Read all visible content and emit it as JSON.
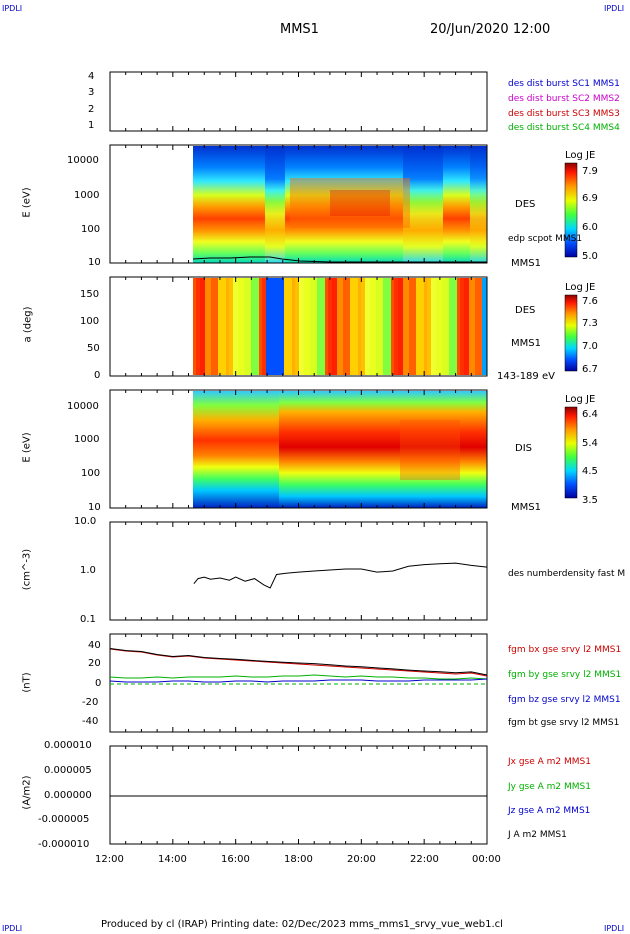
{
  "corner_label": "IPDLI",
  "header": {
    "title": "MMS1",
    "datetime": "20/Jun/2020 12:00"
  },
  "footer": "Produced by cl (IRAP)   Printing date: 02/Dec/2023   mms_mms1_srvy_vue_web1.cl",
  "colors": {
    "axis": "#000000",
    "legend_blue": "#0000cc",
    "legend_magenta": "#cc00cc",
    "legend_red": "#cc0000",
    "legend_green": "#00b000"
  },
  "chart_data": [
    {
      "type": "line",
      "panel": "spacecraft-flags",
      "y_ticks": [
        "1",
        "2",
        "3",
        "4"
      ],
      "ylim": [
        0.7,
        4.3
      ],
      "legend": [
        {
          "text": "des dist burst SC1 MMS1",
          "color": "#0000cc"
        },
        {
          "text": "des dist burst SC2 MMS2",
          "color": "#cc00cc"
        },
        {
          "text": "des dist burst SC3 MMS3",
          "color": "#cc0000"
        },
        {
          "text": "des dist burst SC4 MMS4",
          "color": "#00b000"
        }
      ]
    },
    {
      "type": "heatmap",
      "panel": "des-energy",
      "ylabel": "E (eV)",
      "y_ticks": [
        "10",
        "100",
        "1000",
        "10000"
      ],
      "ylim": [
        10,
        30000
      ],
      "y_scale": "log",
      "side_label": "DES",
      "side_bottom": "MMS1",
      "overlay_label": "edp scpot MMS1",
      "colorbar": {
        "title": "Log JE",
        "ticks": [
          "5.0",
          "6.0",
          "6.9",
          "7.9"
        ],
        "range": [
          5.0,
          7.9
        ]
      }
    },
    {
      "type": "heatmap",
      "panel": "des-pitch",
      "ylabel": "a (deg)",
      "y_ticks": [
        "0",
        "50",
        "100",
        "150"
      ],
      "ylim": [
        0,
        180
      ],
      "side_label": "DES",
      "side_bottom": "MMS1",
      "energy_note": "143-189 eV",
      "colorbar": {
        "title": "Log JE",
        "ticks": [
          "6.7",
          "7.0",
          "7.3",
          "7.6"
        ],
        "range": [
          6.7,
          7.7
        ]
      }
    },
    {
      "type": "heatmap",
      "panel": "dis-energy",
      "ylabel": "E (eV)",
      "y_ticks": [
        "10",
        "100",
        "1000",
        "10000"
      ],
      "ylim": [
        10,
        30000
      ],
      "y_scale": "log",
      "side_label": "DIS",
      "side_bottom": "MMS1",
      "colorbar": {
        "title": "Log JE",
        "ticks": [
          "3.5",
          "4.5",
          "5.4",
          "6.4"
        ],
        "range": [
          3.5,
          6.4
        ]
      }
    },
    {
      "type": "line",
      "panel": "density",
      "ylabel": "(cm^-3)",
      "y_ticks": [
        "0.1",
        "1.0",
        "10.0"
      ],
      "y_scale": "log",
      "ylim": [
        0.1,
        10
      ],
      "series": [
        {
          "name": "des numberdensity fast M",
          "color": "#000000",
          "x": [
            14.67,
            14.8,
            15.0,
            15.2,
            15.5,
            15.8,
            16.0,
            16.3,
            16.6,
            16.9,
            17.1,
            17.3,
            17.6,
            18.0,
            18.5,
            19.0,
            19.5,
            20.0,
            20.5,
            21.0,
            21.5,
            22.0,
            22.5,
            23.0,
            23.5,
            24.0
          ],
          "y": [
            0.55,
            0.7,
            0.75,
            0.68,
            0.72,
            0.65,
            0.75,
            0.62,
            0.7,
            0.52,
            0.45,
            0.85,
            0.9,
            0.95,
            1.0,
            1.05,
            1.1,
            1.1,
            0.95,
            1.0,
            1.25,
            1.35,
            1.4,
            1.45,
            1.3,
            1.2
          ]
        }
      ]
    },
    {
      "type": "line",
      "panel": "magnetic-field",
      "ylabel": "(nT)",
      "y_ticks": [
        "-40",
        "-20",
        "0",
        "20",
        "40"
      ],
      "ylim": [
        -50,
        48
      ],
      "x": [
        12.0,
        12.5,
        13.0,
        13.5,
        14.0,
        14.5,
        15.0,
        15.5,
        16.0,
        16.5,
        17.0,
        17.5,
        18.0,
        18.5,
        19.0,
        19.5,
        20.0,
        20.5,
        21.0,
        21.5,
        22.0,
        22.5,
        23.0,
        23.5,
        24.0
      ],
      "series": [
        {
          "name": "fgm bx gse srvy l2 MMS1",
          "color": "#cc0000",
          "values": [
            33,
            31,
            30,
            27,
            25,
            26,
            24,
            23,
            22,
            21,
            20,
            19,
            18,
            17,
            16,
            15,
            14,
            13,
            12,
            11,
            10,
            9,
            8,
            9,
            6
          ]
        },
        {
          "name": "fgm by gse srvy l2 MMS1",
          "color": "#00b000",
          "values": [
            5,
            4,
            4,
            5,
            4,
            5,
            5,
            5,
            6,
            5,
            5,
            6,
            6,
            7,
            6,
            5,
            6,
            5,
            5,
            4,
            4,
            3,
            3,
            4,
            3
          ]
        },
        {
          "name": "fgm bz gse srvy l2 MMS1",
          "color": "#0000cc",
          "values": [
            1,
            0,
            0,
            0,
            1,
            1,
            0,
            0,
            1,
            1,
            0,
            1,
            1,
            1,
            2,
            2,
            2,
            1,
            1,
            1,
            2,
            2,
            2,
            2,
            3
          ]
        },
        {
          "name": "fgm bt gse srvy l2 MMS1",
          "color": "#000000",
          "values": [
            33.5,
            31.5,
            30.5,
            27.5,
            25.5,
            26.5,
            24.5,
            23.5,
            22.8,
            21.6,
            20.6,
            19.8,
            19.0,
            18.4,
            17.2,
            16.0,
            15.3,
            14.1,
            13.1,
            11.9,
            11.0,
            10.2,
            9.2,
            10.1,
            7.0
          ]
        }
      ]
    },
    {
      "type": "line",
      "panel": "current-density",
      "ylabel": "(A/m2)",
      "y_ticks": [
        "-0.000010",
        "-0.000005",
        "0.000000",
        "0.000005",
        "0.000010"
      ],
      "ylim": [
        -1e-05,
        1e-05
      ],
      "series": [
        {
          "name": "Jx gse A m2 MMS1",
          "color": "#cc0000"
        },
        {
          "name": "Jy gse A m2 MMS1",
          "color": "#00b000"
        },
        {
          "name": "Jz gse A m2 MMS1",
          "color": "#0000cc"
        },
        {
          "name": "J A m2 MMS1",
          "color": "#000000"
        }
      ]
    }
  ],
  "x_axis": {
    "ticks": [
      "12:00",
      "14:00",
      "16:00",
      "18:00",
      "20:00",
      "22:00",
      "00:00"
    ],
    "range": [
      12,
      24
    ]
  }
}
